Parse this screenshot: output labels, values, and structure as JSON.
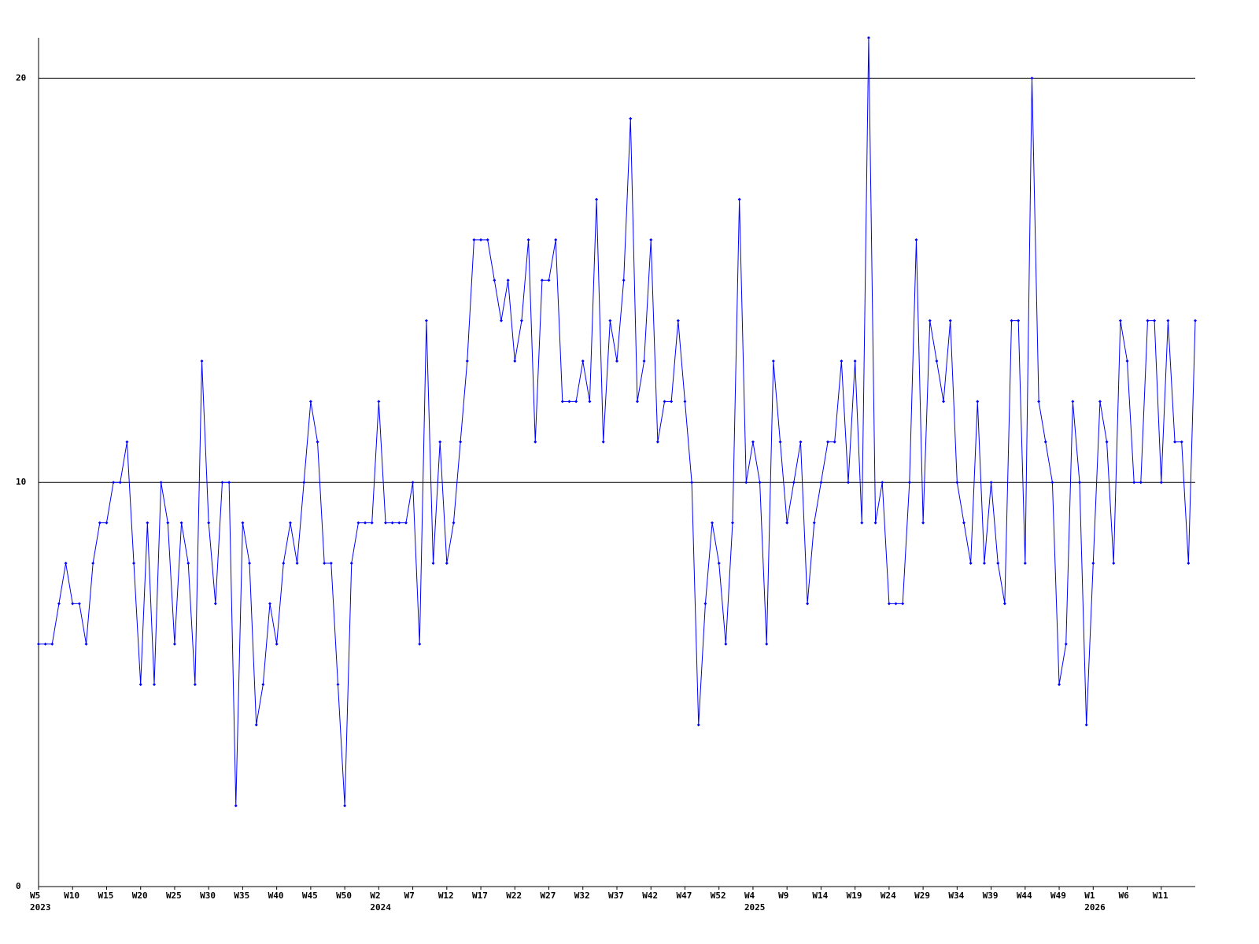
{
  "chart_data": {
    "type": "line",
    "color": "#0000ff",
    "grid": true,
    "ylim": [
      0,
      21
    ],
    "yticks": [
      0,
      10,
      20
    ],
    "categories": [
      "W5",
      null,
      null,
      null,
      null,
      "W10",
      null,
      null,
      null,
      null,
      "W15",
      null,
      null,
      null,
      null,
      "W20",
      null,
      null,
      null,
      null,
      "W25",
      null,
      null,
      null,
      null,
      "W30",
      null,
      null,
      null,
      null,
      "W35",
      null,
      null,
      null,
      null,
      "W40",
      null,
      null,
      null,
      null,
      "W45",
      null,
      null,
      null,
      null,
      "W50",
      null,
      null,
      null,
      null,
      "W2",
      null,
      null,
      null,
      null,
      "W7",
      null,
      null,
      null,
      null,
      "W12",
      null,
      null,
      null,
      null,
      "W17",
      null,
      null,
      null,
      null,
      "W22",
      null,
      null,
      null,
      null,
      "W27",
      null,
      null,
      null,
      null,
      "W32",
      null,
      null,
      null,
      null,
      "W37",
      null,
      null,
      null,
      null,
      "W42",
      null,
      null,
      null,
      null,
      "W47",
      null,
      null,
      null,
      null,
      "W52",
      null,
      null,
      null,
      null,
      "W4",
      null,
      null,
      null,
      null,
      "W9",
      null,
      null,
      null,
      null,
      "W14",
      null,
      null,
      null,
      null,
      "W19",
      null,
      null,
      null,
      null,
      "W24",
      null,
      null,
      null,
      null,
      "W29",
      null,
      null,
      null,
      null,
      "W34",
      null,
      null,
      null,
      null,
      "W39",
      null,
      null,
      null,
      null,
      "W44",
      null,
      null,
      null,
      null,
      "W49",
      null,
      null,
      null,
      null,
      "W1",
      null,
      null,
      null,
      null,
      "W6",
      null,
      null,
      null,
      null,
      "W11",
      null,
      null,
      null,
      null,
      null
    ],
    "year_labels": [
      "2023",
      null,
      null,
      null,
      null,
      null,
      null,
      null,
      null,
      null,
      null,
      null,
      null,
      null,
      null,
      null,
      null,
      null,
      null,
      null,
      null,
      null,
      null,
      null,
      null,
      null,
      null,
      null,
      null,
      null,
      null,
      null,
      null,
      null,
      null,
      null,
      null,
      null,
      null,
      null,
      null,
      null,
      null,
      null,
      null,
      null,
      null,
      null,
      null,
      null,
      "2024",
      null,
      null,
      null,
      null,
      null,
      null,
      null,
      null,
      null,
      null,
      null,
      null,
      null,
      null,
      null,
      null,
      null,
      null,
      null,
      null,
      null,
      null,
      null,
      null,
      null,
      null,
      null,
      null,
      null,
      null,
      null,
      null,
      null,
      null,
      null,
      null,
      null,
      null,
      null,
      null,
      null,
      null,
      null,
      null,
      null,
      null,
      null,
      null,
      null,
      null,
      null,
      null,
      null,
      null,
      "2025",
      null,
      null,
      null,
      null,
      null,
      null,
      null,
      null,
      null,
      null,
      null,
      null,
      null,
      null,
      null,
      null,
      null,
      null,
      null,
      null,
      null,
      null,
      null,
      null,
      null,
      null,
      null,
      null,
      null,
      null,
      null,
      null,
      null,
      null,
      null,
      null,
      null,
      null,
      null,
      null,
      null,
      null,
      null,
      null,
      null,
      null,
      null,
      null,
      null,
      "2026",
      null,
      null,
      null,
      null,
      null,
      null,
      null,
      null,
      null,
      null,
      null,
      null,
      null,
      null,
      null
    ],
    "values": [
      6,
      6,
      6,
      7,
      8,
      7,
      7,
      6,
      8,
      9,
      9,
      10,
      10,
      11,
      8,
      5,
      9,
      5,
      10,
      9,
      6,
      9,
      8,
      5,
      13,
      9,
      7,
      10,
      10,
      2,
      9,
      8,
      4,
      5,
      7,
      6,
      8,
      9,
      8,
      10,
      12,
      11,
      8,
      8,
      5,
      2,
      8,
      9,
      9,
      9,
      12,
      9,
      9,
      9,
      9,
      10,
      6,
      14,
      8,
      11,
      8,
      9,
      11,
      13,
      16,
      16,
      16,
      15,
      14,
      15,
      13,
      14,
      16,
      11,
      15,
      15,
      16,
      12,
      12,
      12,
      13,
      12,
      17,
      11,
      14,
      13,
      15,
      19,
      12,
      13,
      16,
      11,
      12,
      12,
      14,
      12,
      10,
      4,
      7,
      9,
      8,
      6,
      9,
      17,
      10,
      11,
      10,
      6,
      13,
      11,
      9,
      10,
      11,
      7,
      9,
      10,
      11,
      11,
      13,
      10,
      13,
      9,
      21,
      9,
      10,
      7,
      7,
      7,
      10,
      16,
      9,
      14,
      13,
      12,
      14,
      10,
      9,
      8,
      12,
      8,
      10,
      8,
      7,
      14,
      14,
      8,
      20,
      12,
      11,
      10,
      5,
      6,
      12,
      10,
      4,
      8,
      12,
      11,
      8,
      14,
      13,
      10,
      10,
      14,
      14,
      10,
      14,
      11,
      11,
      8,
      14
    ]
  }
}
